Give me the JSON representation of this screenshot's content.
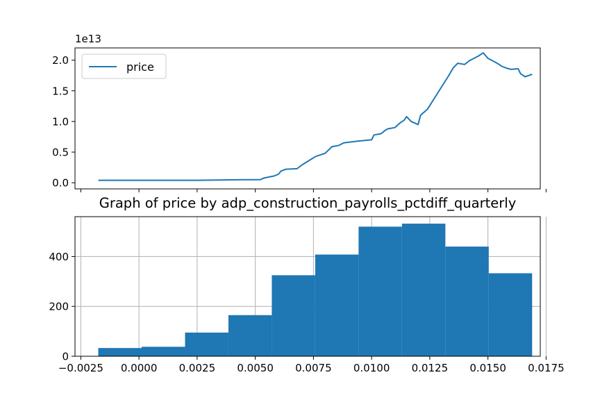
{
  "chart_data": [
    {
      "type": "line",
      "title": "",
      "xlabel": "",
      "ylabel": "",
      "offset_label": "1e13",
      "xlim": [
        -0.00275,
        0.01725
      ],
      "ylim": [
        -0.1,
        2.2
      ],
      "x_ticks": [
        -0.0025,
        0.0,
        0.0025,
        0.005,
        0.0075,
        0.01,
        0.0125,
        0.015,
        0.0175
      ],
      "x_tick_labels_visible": false,
      "y_ticks": [
        0.0,
        0.5,
        1.0,
        1.5,
        2.0
      ],
      "y_tick_labels": [
        "0.0",
        "0.5",
        "1.0",
        "1.5",
        "2.0"
      ],
      "grid": false,
      "legend_position": "upper-left",
      "colors": {
        "line": "#1f77b4"
      },
      "series": [
        {
          "name": "price",
          "points": [
            [
              -0.00175,
              0.04
            ],
            [
              0.0,
              0.04
            ],
            [
              0.0025,
              0.04
            ],
            [
              0.0045,
              0.05
            ],
            [
              0.0052,
              0.05
            ],
            [
              0.0054,
              0.08
            ],
            [
              0.0058,
              0.11
            ],
            [
              0.006,
              0.14
            ],
            [
              0.0061,
              0.19
            ],
            [
              0.0063,
              0.22
            ],
            [
              0.0068,
              0.23
            ],
            [
              0.007,
              0.29
            ],
            [
              0.0073,
              0.36
            ],
            [
              0.0076,
              0.43
            ],
            [
              0.008,
              0.48
            ],
            [
              0.0083,
              0.59
            ],
            [
              0.0086,
              0.61
            ],
            [
              0.0088,
              0.65
            ],
            [
              0.009,
              0.66
            ],
            [
              0.0094,
              0.68
            ],
            [
              0.0097,
              0.69
            ],
            [
              0.01,
              0.7
            ],
            [
              0.0101,
              0.78
            ],
            [
              0.0104,
              0.8
            ],
            [
              0.0106,
              0.86
            ],
            [
              0.0107,
              0.88
            ],
            [
              0.011,
              0.9
            ],
            [
              0.0112,
              0.97
            ],
            [
              0.0114,
              1.02
            ],
            [
              0.0115,
              1.08
            ],
            [
              0.0117,
              1.0
            ],
            [
              0.012,
              0.95
            ],
            [
              0.0121,
              1.1
            ],
            [
              0.0124,
              1.2
            ],
            [
              0.0127,
              1.38
            ],
            [
              0.013,
              1.56
            ],
            [
              0.0133,
              1.74
            ],
            [
              0.0135,
              1.87
            ],
            [
              0.0137,
              1.95
            ],
            [
              0.014,
              1.93
            ],
            [
              0.0142,
              1.99
            ],
            [
              0.0144,
              2.03
            ],
            [
              0.0146,
              2.07
            ],
            [
              0.0148,
              2.12
            ],
            [
              0.015,
              2.03
            ],
            [
              0.0152,
              1.99
            ],
            [
              0.0154,
              1.95
            ],
            [
              0.0156,
              1.9
            ],
            [
              0.0158,
              1.87
            ],
            [
              0.016,
              1.85
            ],
            [
              0.0163,
              1.86
            ],
            [
              0.0164,
              1.78
            ],
            [
              0.0166,
              1.73
            ],
            [
              0.0169,
              1.77
            ]
          ]
        }
      ]
    },
    {
      "type": "bar",
      "title": "Graph of price by adp_construction_payrolls_pctdiff_quarterly",
      "xlabel": "",
      "ylabel": "",
      "xlim": [
        -0.00275,
        0.01725
      ],
      "ylim": [
        0,
        560
      ],
      "x_ticks": [
        -0.0025,
        0.0,
        0.0025,
        0.005,
        0.0075,
        0.01,
        0.0125,
        0.015,
        0.0175
      ],
      "x_tick_labels": [
        "−0.0025",
        "0.0000",
        "0.0025",
        "0.0050",
        "0.0075",
        "0.0100",
        "0.0125",
        "0.0150",
        "0.0175"
      ],
      "y_ticks": [
        0,
        200,
        400
      ],
      "y_tick_labels": [
        "0",
        "200",
        "400"
      ],
      "grid": true,
      "colors": {
        "bar": "#1f77b4",
        "grid": "#b0b0b0"
      },
      "bins": [
        {
          "x0": -0.00175,
          "x1": 0.000115,
          "value": 33
        },
        {
          "x0": 0.000115,
          "x1": 0.00198,
          "value": 38
        },
        {
          "x0": 0.00198,
          "x1": 0.003845,
          "value": 95
        },
        {
          "x0": 0.003845,
          "x1": 0.00571,
          "value": 165
        },
        {
          "x0": 0.00571,
          "x1": 0.007575,
          "value": 325
        },
        {
          "x0": 0.007575,
          "x1": 0.00944,
          "value": 408
        },
        {
          "x0": 0.00944,
          "x1": 0.011305,
          "value": 520
        },
        {
          "x0": 0.011305,
          "x1": 0.01317,
          "value": 532
        },
        {
          "x0": 0.01317,
          "x1": 0.015035,
          "value": 440
        },
        {
          "x0": 0.015035,
          "x1": 0.0169,
          "value": 333
        }
      ]
    }
  ]
}
